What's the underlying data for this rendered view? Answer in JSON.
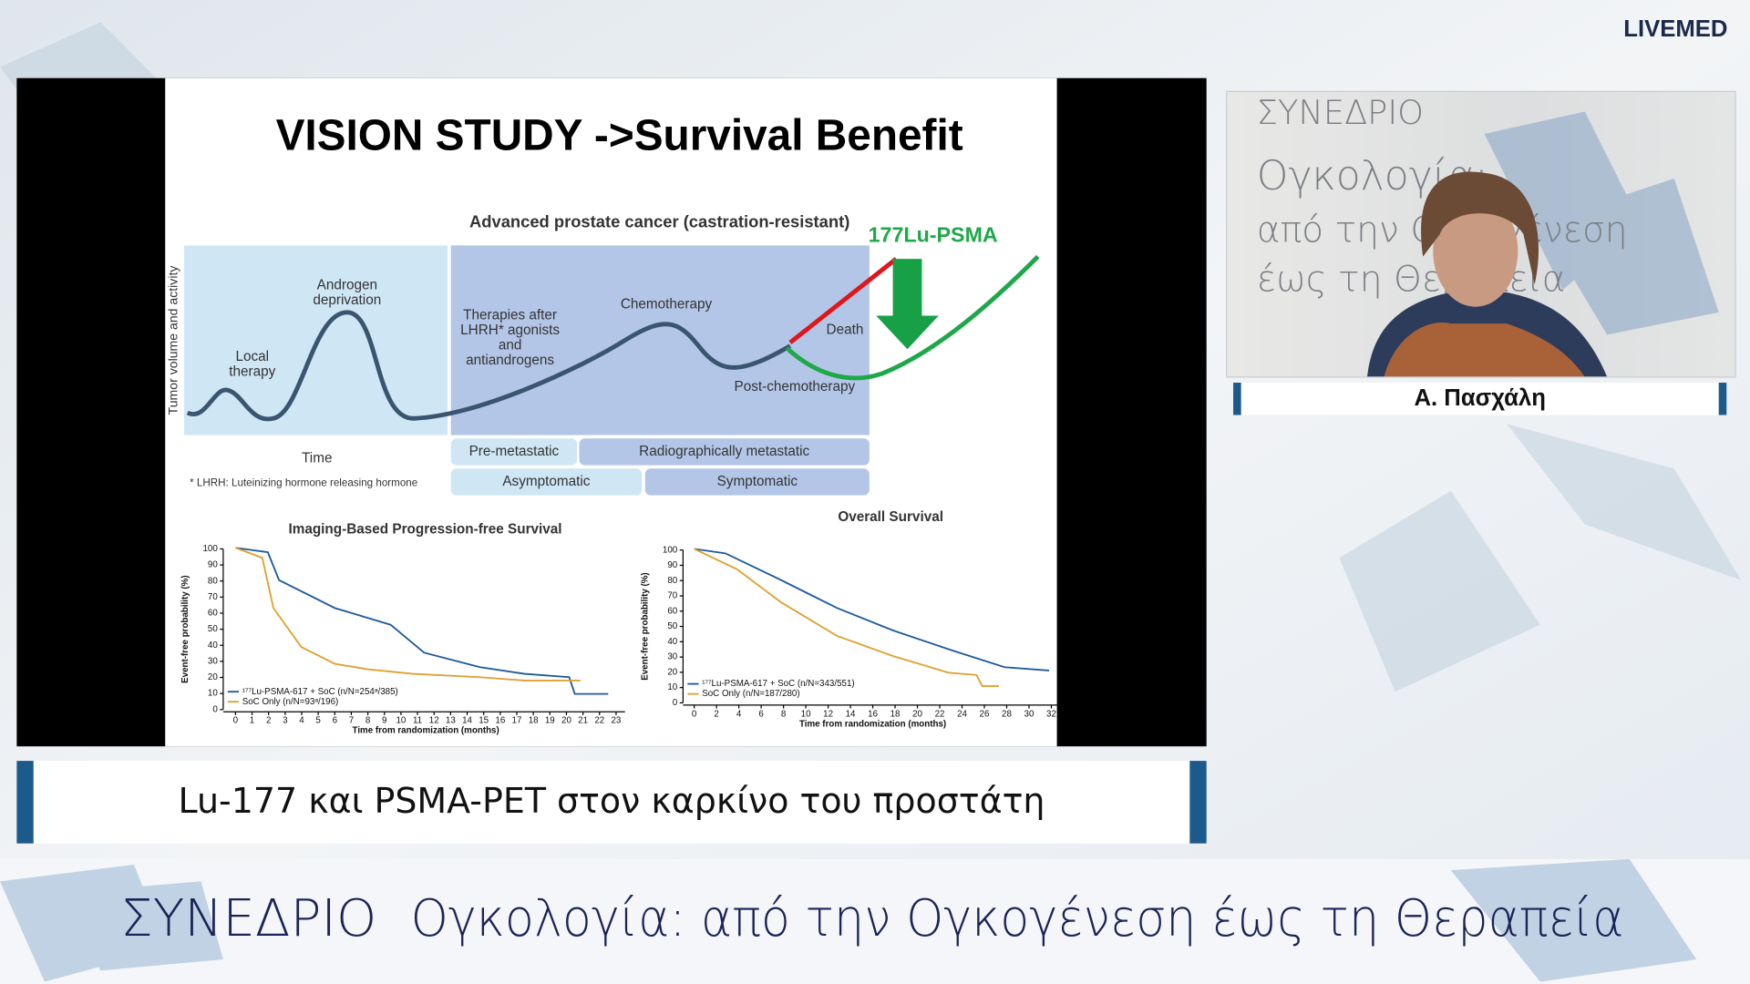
{
  "logo": "LIVEMED",
  "slide": {
    "title": "VISION STUDY ->Survival Benefit",
    "diagram": {
      "heading": "Advanced prostate cancer (castration-resistant)",
      "drug_label": "177Lu-PSMA",
      "y_axis_label": "Tumor volume and activity",
      "x_axis_label": "Time",
      "footnote": "* LHRH: Luteinizing hormone releasing hormone",
      "labels": [
        [
          "Local",
          "therapy"
        ],
        [
          "Androgen",
          "deprivation"
        ],
        [
          "Therapies after",
          "LHRH* agonists",
          "and",
          "antiandrogens"
        ],
        [
          "Chemotherapy"
        ],
        [
          "Death"
        ],
        [
          "Post-chemotherapy"
        ]
      ],
      "stages": [
        "Pre-metastatic",
        "Radiographically metastatic",
        "Asymptomatic",
        "Symptomatic"
      ]
    },
    "pfs": {
      "title": "Imaging-Based Progression-free Survival",
      "y_label": "Event-free probability (%)",
      "x_label": "Time from randomization (months)",
      "yticks": [
        0,
        10,
        20,
        30,
        40,
        50,
        60,
        70,
        80,
        90,
        100
      ],
      "xticks": [
        0,
        1,
        2,
        3,
        4,
        5,
        6,
        7,
        8,
        9,
        10,
        11,
        12,
        13,
        14,
        15,
        16,
        17,
        18,
        19,
        20,
        21,
        22,
        23
      ],
      "legend": [
        "¹⁷⁷Lu-PSMA-617 + SoC (n/N=254ᵃ/385)",
        "SoC Only (n/N=93ᵃ/196)"
      ]
    },
    "os": {
      "title": "Overall Survival",
      "y_label": "Event-free probability (%)",
      "x_label": "Time from randomization (months)",
      "yticks": [
        0,
        10,
        20,
        30,
        40,
        50,
        60,
        70,
        80,
        90,
        100
      ],
      "xticks": [
        0,
        2,
        4,
        6,
        8,
        10,
        12,
        14,
        16,
        18,
        20,
        22,
        24,
        26,
        28,
        30,
        32
      ],
      "legend": [
        "¹⁷⁷Lu-PSMA-617 + SoC (n/N=343/551)",
        "SoC Only (n/N=187/280)"
      ]
    }
  },
  "caption": "Lu-177 και PSMA-PET στον καρκίνο του προστάτη",
  "speaker": {
    "name": "Α. Πασχάλη",
    "backdrop": [
      "ΣΥΝΕΔΡΙΟ",
      "Ογκολογία:",
      "από την Ογκογένεση",
      "έως τη Θεραπεία"
    ]
  },
  "banner": {
    "event": "ΣΥΝΕΔΡΙΟ",
    "subtitle": "Ογκολογία: από την Ογκογένεση έως τη Θεραπεία"
  }
}
